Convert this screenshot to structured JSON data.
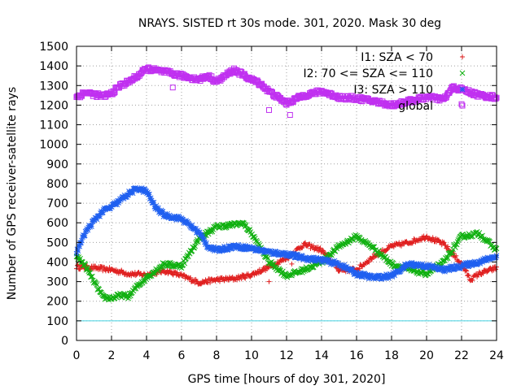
{
  "chart_data": {
    "type": "scatter",
    "title": "NRAYS. SISTED rt 30s mode. 301, 2020. Mask 30 deg",
    "xlabel": "GPS time [hours of doy 301, 2020]",
    "ylabel": "Number of GPS receiver-satellite rays",
    "xlim": [
      0,
      24
    ],
    "ylim": [
      0,
      1500
    ],
    "xticks": [
      0,
      2,
      4,
      6,
      8,
      10,
      12,
      14,
      16,
      18,
      20,
      22,
      24
    ],
    "yticks": [
      0,
      100,
      200,
      300,
      400,
      500,
      600,
      700,
      800,
      900,
      1000,
      1100,
      1200,
      1300,
      1400,
      1500
    ],
    "grid": true,
    "legend_position": "top-right",
    "threshold": {
      "value": 100,
      "color": "#40d0e0"
    },
    "series": [
      {
        "name": "I1: SZA < 70",
        "color": "#e02020",
        "marker": "plus",
        "x": [
          0,
          1,
          2,
          3,
          4,
          5,
          5.5,
          6,
          7,
          8,
          9,
          10,
          11,
          12,
          13,
          14,
          15,
          16,
          17,
          18,
          19,
          20,
          21,
          22,
          22.5,
          23,
          24
        ],
        "y": [
          375,
          370,
          360,
          340,
          335,
          355,
          345,
          330,
          295,
          310,
          315,
          335,
          375,
          420,
          490,
          460,
          360,
          360,
          430,
          480,
          500,
          530,
          490,
          390,
          310,
          340,
          370
        ]
      },
      {
        "name": "I2: 70 <= SZA <= 110",
        "color": "#10b010",
        "marker": "cross",
        "x": [
          0,
          0.5,
          1,
          1.5,
          2,
          2.5,
          3,
          3.5,
          4,
          5,
          6,
          6.5,
          7,
          8,
          9,
          9.5,
          10,
          11,
          12,
          13,
          14,
          15,
          16,
          17,
          18,
          19,
          20,
          21,
          22,
          23,
          24
        ],
        "y": [
          430,
          380,
          300,
          220,
          215,
          230,
          225,
          280,
          320,
          390,
          380,
          450,
          520,
          580,
          590,
          600,
          545,
          400,
          330,
          360,
          400,
          480,
          530,
          470,
          390,
          360,
          340,
          400,
          530,
          545,
          460
        ]
      },
      {
        "name": "I3: SZA > 110",
        "color": "#2060f0",
        "marker": "star",
        "x": [
          0,
          0.5,
          1,
          1.5,
          2,
          3,
          3.5,
          4,
          4.5,
          5,
          6,
          7,
          7.5,
          8,
          9,
          10,
          11,
          12,
          13,
          14,
          15,
          16,
          17,
          18,
          19,
          20,
          21,
          22,
          23,
          24
        ],
        "y": [
          450,
          550,
          610,
          660,
          680,
          750,
          775,
          760,
          680,
          640,
          620,
          550,
          480,
          460,
          480,
          470,
          450,
          440,
          420,
          410,
          390,
          340,
          320,
          330,
          390,
          380,
          360,
          380,
          400,
          430
        ]
      },
      {
        "name": "global",
        "color": "#c030f0",
        "marker": "square",
        "x": [
          0,
          0.5,
          1,
          1.5,
          2,
          2.5,
          3,
          3.5,
          4,
          5,
          6,
          7,
          7.5,
          8,
          9,
          10,
          10.5,
          11,
          12,
          13,
          14,
          15,
          16,
          17,
          18,
          19,
          20,
          21,
          21.5,
          22,
          23,
          24
        ],
        "y": [
          1240,
          1265,
          1255,
          1245,
          1260,
          1300,
          1320,
          1350,
          1385,
          1370,
          1350,
          1330,
          1350,
          1320,
          1380,
          1330,
          1310,
          1270,
          1210,
          1250,
          1270,
          1240,
          1235,
          1220,
          1200,
          1220,
          1240,
          1230,
          1290,
          1280,
          1250,
          1240
        ]
      }
    ],
    "outliers": [
      {
        "series": "I1: SZA < 70",
        "x": 11,
        "y": 300
      },
      {
        "series": "I1: SZA < 70",
        "x": 12.3,
        "y": 390
      },
      {
        "series": "global",
        "x": 11,
        "y": 1175
      },
      {
        "series": "global",
        "x": 12.2,
        "y": 1150
      },
      {
        "series": "global",
        "x": 22,
        "y": 1205
      },
      {
        "series": "global",
        "x": 5.5,
        "y": 1290
      }
    ]
  }
}
